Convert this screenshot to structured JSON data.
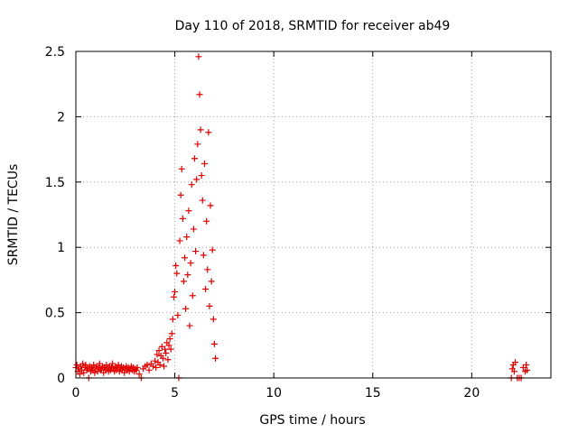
{
  "chart_data": {
    "type": "scatter",
    "title": "Day 110 of 2018, SRMTID for receiver ab49",
    "xlabel": "GPS time / hours",
    "ylabel": "SRMTID / TECUs",
    "xlim": [
      0,
      24
    ],
    "ylim": [
      0,
      2.5
    ],
    "x_ticks": [
      0,
      5,
      10,
      15,
      20
    ],
    "x_tick_labels": [
      "0",
      "5",
      "10",
      "15",
      "20"
    ],
    "y_ticks": [
      0,
      0.5,
      1,
      1.5,
      2,
      2.5
    ],
    "y_tick_labels": [
      "0",
      "0.5",
      "1",
      "1.5",
      "2",
      "2.5"
    ],
    "grid": true,
    "marker": "+",
    "marker_color": "#e00000",
    "series": [
      {
        "name": "SRMTID",
        "points": [
          [
            0.0,
            0.08
          ],
          [
            0.05,
            0.1
          ],
          [
            0.1,
            0.05
          ],
          [
            0.15,
            0.07
          ],
          [
            0.2,
            0.03
          ],
          [
            0.25,
            0.09
          ],
          [
            0.3,
            0.06
          ],
          [
            0.35,
            0.11
          ],
          [
            0.4,
            0.04
          ],
          [
            0.45,
            0.08
          ],
          [
            0.5,
            0.1
          ],
          [
            0.55,
            0.06
          ],
          [
            0.6,
            0.07
          ],
          [
            0.65,
            0.0
          ],
          [
            0.7,
            0.09
          ],
          [
            0.75,
            0.05
          ],
          [
            0.8,
            0.08
          ],
          [
            0.85,
            0.06
          ],
          [
            0.9,
            0.1
          ],
          [
            0.95,
            0.04
          ],
          [
            1.0,
            0.07
          ],
          [
            1.05,
            0.09
          ],
          [
            1.1,
            0.05
          ],
          [
            1.15,
            0.08
          ],
          [
            1.2,
            0.11
          ],
          [
            1.25,
            0.06
          ],
          [
            1.3,
            0.07
          ],
          [
            1.35,
            0.09
          ],
          [
            1.4,
            0.04
          ],
          [
            1.45,
            0.08
          ],
          [
            1.5,
            0.06
          ],
          [
            1.55,
            0.1
          ],
          [
            1.6,
            0.07
          ],
          [
            1.65,
            0.05
          ],
          [
            1.7,
            0.09
          ],
          [
            1.75,
            0.06
          ],
          [
            1.8,
            0.08
          ],
          [
            1.85,
            0.11
          ],
          [
            1.9,
            0.07
          ],
          [
            1.95,
            0.05
          ],
          [
            2.0,
            0.09
          ],
          [
            2.05,
            0.06
          ],
          [
            2.1,
            0.08
          ],
          [
            2.15,
            0.1
          ],
          [
            2.2,
            0.05
          ],
          [
            2.25,
            0.07
          ],
          [
            2.3,
            0.09
          ],
          [
            2.35,
            0.06
          ],
          [
            2.4,
            0.08
          ],
          [
            2.45,
            0.04
          ],
          [
            2.5,
            0.07
          ],
          [
            2.55,
            0.09
          ],
          [
            2.6,
            0.06
          ],
          [
            2.65,
            0.08
          ],
          [
            2.7,
            0.05
          ],
          [
            2.75,
            0.07
          ],
          [
            2.8,
            0.09
          ],
          [
            2.85,
            0.06
          ],
          [
            2.9,
            0.08
          ],
          [
            2.95,
            0.05
          ],
          [
            3.0,
            0.07
          ],
          [
            3.05,
            0.06
          ],
          [
            3.1,
            0.08
          ],
          [
            3.2,
            0.03
          ],
          [
            3.3,
            0.0
          ],
          [
            3.4,
            0.07
          ],
          [
            3.5,
            0.09
          ],
          [
            3.6,
            0.1
          ],
          [
            3.7,
            0.06
          ],
          [
            3.8,
            0.11
          ],
          [
            3.9,
            0.09
          ],
          [
            4.0,
            0.13
          ],
          [
            4.05,
            0.08
          ],
          [
            4.1,
            0.18
          ],
          [
            4.15,
            0.12
          ],
          [
            4.2,
            0.21
          ],
          [
            4.25,
            0.1
          ],
          [
            4.3,
            0.17
          ],
          [
            4.35,
            0.24
          ],
          [
            4.4,
            0.15
          ],
          [
            4.45,
            0.09
          ],
          [
            4.5,
            0.22
          ],
          [
            4.55,
            0.19
          ],
          [
            4.6,
            0.27
          ],
          [
            4.65,
            0.14
          ],
          [
            4.7,
            0.25
          ],
          [
            4.75,
            0.3
          ],
          [
            4.8,
            0.22
          ],
          [
            4.85,
            0.34
          ],
          [
            4.9,
            0.45
          ],
          [
            4.95,
            0.62
          ],
          [
            5.0,
            0.66
          ],
          [
            5.05,
            0.86
          ],
          [
            5.1,
            0.8
          ],
          [
            5.15,
            0.48
          ],
          [
            5.2,
            0.0
          ],
          [
            5.25,
            1.05
          ],
          [
            5.3,
            1.4
          ],
          [
            5.35,
            1.6
          ],
          [
            5.4,
            1.22
          ],
          [
            5.45,
            0.74
          ],
          [
            5.5,
            0.92
          ],
          [
            5.55,
            0.53
          ],
          [
            5.6,
            1.08
          ],
          [
            5.65,
            0.79
          ],
          [
            5.7,
            1.28
          ],
          [
            5.75,
            0.4
          ],
          [
            5.8,
            0.88
          ],
          [
            5.85,
            1.48
          ],
          [
            5.9,
            0.63
          ],
          [
            5.95,
            1.14
          ],
          [
            6.0,
            1.68
          ],
          [
            6.05,
            0.97
          ],
          [
            6.1,
            1.52
          ],
          [
            6.15,
            1.79
          ],
          [
            6.2,
            2.46
          ],
          [
            6.25,
            2.17
          ],
          [
            6.3,
            1.9
          ],
          [
            6.35,
            1.55
          ],
          [
            6.4,
            1.36
          ],
          [
            6.45,
            0.94
          ],
          [
            6.5,
            1.64
          ],
          [
            6.55,
            0.68
          ],
          [
            6.6,
            1.2
          ],
          [
            6.65,
            0.83
          ],
          [
            6.7,
            1.88
          ],
          [
            6.75,
            0.55
          ],
          [
            6.8,
            1.32
          ],
          [
            6.85,
            0.74
          ],
          [
            6.9,
            0.98
          ],
          [
            6.95,
            0.45
          ],
          [
            7.0,
            0.26
          ],
          [
            7.05,
            0.15
          ],
          [
            22.0,
            0.0
          ],
          [
            22.05,
            0.07
          ],
          [
            22.1,
            0.1
          ],
          [
            22.15,
            0.05
          ],
          [
            22.2,
            0.12
          ],
          [
            22.3,
            0.0
          ],
          [
            22.4,
            0.0
          ],
          [
            22.5,
            0.0
          ],
          [
            22.6,
            0.08
          ],
          [
            22.7,
            0.05
          ],
          [
            22.75,
            0.1
          ],
          [
            22.8,
            0.06
          ]
        ]
      }
    ]
  }
}
